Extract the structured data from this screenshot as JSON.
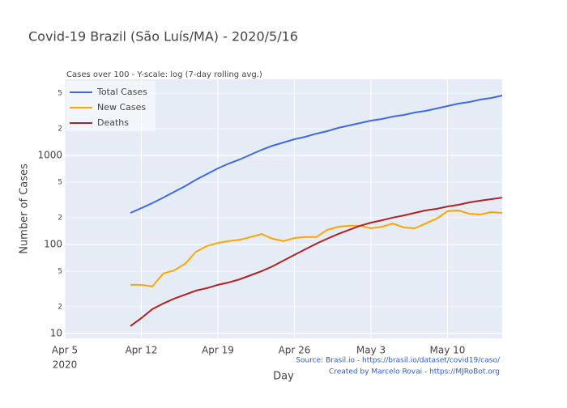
{
  "chart_data": {
    "type": "line",
    "title": "Covid-19 Brazil (São Luís/MA) - 2020/5/16",
    "subtitle": "Cases over 100 - Y-scale: log (7-day rolling avg.)",
    "x_label": "Day",
    "y_label": "Number of Cases",
    "annotations": [
      "Source: Brasil.io - https://brasil.io/dataset/covid19/caso/",
      "Created by Marcelo Rovai - https://MJRoBot.org"
    ],
    "log_y": true,
    "grid": true,
    "legend_position": "top-left",
    "x": [
      "2020-04-11",
      "2020-04-12",
      "2020-04-13",
      "2020-04-14",
      "2020-04-15",
      "2020-04-16",
      "2020-04-17",
      "2020-04-18",
      "2020-04-19",
      "2020-04-20",
      "2020-04-21",
      "2020-04-22",
      "2020-04-23",
      "2020-04-24",
      "2020-04-25",
      "2020-04-26",
      "2020-04-27",
      "2020-04-28",
      "2020-04-29",
      "2020-04-30",
      "2020-05-01",
      "2020-05-02",
      "2020-05-03",
      "2020-05-04",
      "2020-05-05",
      "2020-05-06",
      "2020-05-07",
      "2020-05-08",
      "2020-05-09",
      "2020-05-10",
      "2020-05-11",
      "2020-05-12",
      "2020-05-13",
      "2020-05-14",
      "2020-05-15"
    ],
    "series": [
      {
        "name": "Total Cases",
        "color": "#4169e1",
        "values": [
          226,
          256,
          291,
          336,
          390,
          451,
          534,
          618,
          715,
          811,
          901,
          1021,
          1158,
          1286,
          1398,
          1520,
          1618,
          1758,
          1874,
          2037,
          2168,
          2310,
          2460,
          2566,
          2730,
          2848,
          3033,
          3162,
          3366,
          3585,
          3818,
          3981,
          4238,
          4420,
          4705
        ]
      },
      {
        "name": "New Cases",
        "color": "#ffa500",
        "values": [
          35.1,
          35.1,
          33.7,
          47.1,
          51.2,
          60.5,
          82.8,
          95.9,
          104,
          109,
          113,
          121,
          131,
          116,
          109,
          118,
          121,
          121,
          146,
          158,
          162,
          162,
          152,
          158,
          172,
          155,
          152,
          172,
          195,
          236,
          241,
          221,
          217,
          231,
          226
        ]
      },
      {
        "name": "Deaths",
        "color": "#b22222",
        "values": [
          12.1,
          14.9,
          18.7,
          21.7,
          24.6,
          27.3,
          30.3,
          32.3,
          35.1,
          37.4,
          40.6,
          45.1,
          50.1,
          56.8,
          65.8,
          76.2,
          88.2,
          102,
          116,
          131,
          146,
          162,
          176,
          187,
          200,
          212,
          226,
          241,
          251,
          267,
          279,
          297,
          310,
          323,
          336
        ]
      }
    ],
    "xlim": [
      "2020-04-05",
      "2020-05-15"
    ],
    "xticks": [
      {
        "value": "2020-04-05",
        "label": "Apr 5"
      },
      {
        "value": "2020-04-12",
        "label": "Apr 12"
      },
      {
        "value": "2020-04-19",
        "label": "Apr 19"
      },
      {
        "value": "2020-04-26",
        "label": "Apr 26"
      },
      {
        "value": "2020-05-03",
        "label": "May 3"
      },
      {
        "value": "2020-05-10",
        "label": "May 10"
      }
    ],
    "x_year_label": "2020",
    "ylim": [
      8.8,
      7160
    ],
    "yticks": [
      10,
      {
        "value": 20,
        "label": "2"
      },
      {
        "value": 50,
        "label": "5"
      },
      100,
      {
        "value": 200,
        "label": "2"
      },
      {
        "value": 500,
        "label": "5"
      },
      1000,
      {
        "value": 2000,
        "label": "2"
      },
      {
        "value": 5000,
        "label": "5"
      }
    ]
  }
}
